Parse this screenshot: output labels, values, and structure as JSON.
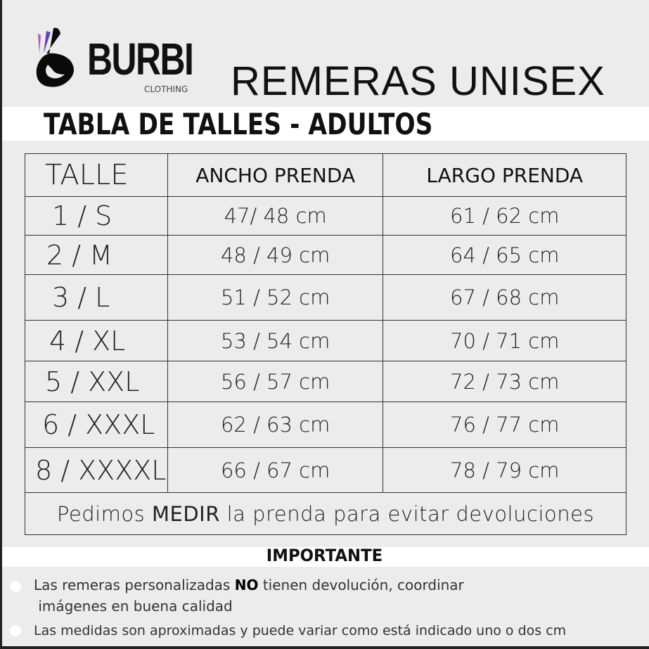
{
  "brand": {
    "name": "BURBI",
    "sub": "CLOTHING"
  },
  "header": {
    "title": "REMERAS UNISEX",
    "subtitle": "TABLA DE TALLES - ADULTOS"
  },
  "table": {
    "columns": [
      "TALLE",
      "ANCHO PRENDA",
      "LARGO PRENDA"
    ],
    "rows": [
      [
        "1 / S",
        "47/ 48 cm",
        "61 / 62 cm"
      ],
      [
        "2 / M",
        "48 / 49 cm",
        "64 / 65 cm"
      ],
      [
        "3 / L",
        "51 / 52 cm",
        "67 / 68 cm"
      ],
      [
        "4 / XL",
        "53 / 54 cm",
        "70 / 71 cm"
      ],
      [
        "5 / XXL",
        "56 / 57 cm",
        "72 / 73 cm"
      ],
      [
        "6 / XXXL",
        "62 / 63 cm",
        "76 / 77 cm"
      ],
      [
        "8 / XXXXL",
        "66 / 67 cm",
        "78 / 79 cm"
      ]
    ],
    "note": {
      "pre": "Pedimos ",
      "bold": "MEDIR",
      "post": " la prenda para evitar devoluciones"
    }
  },
  "important": {
    "title": "IMPORTANTE",
    "items": [
      {
        "pre": "Las remeras personalizadas ",
        "bold": "NO",
        "post": " tienen devolución, coordinar",
        "line2": "imágenes en buena calidad"
      },
      {
        "text": "Las medidas son aproximadas y puede variar como está indicado uno o dos cm"
      }
    ]
  },
  "colors": {
    "background": "#ececec",
    "logo_purple": "#6a3fb5",
    "logo_pink": "#b455b5"
  }
}
